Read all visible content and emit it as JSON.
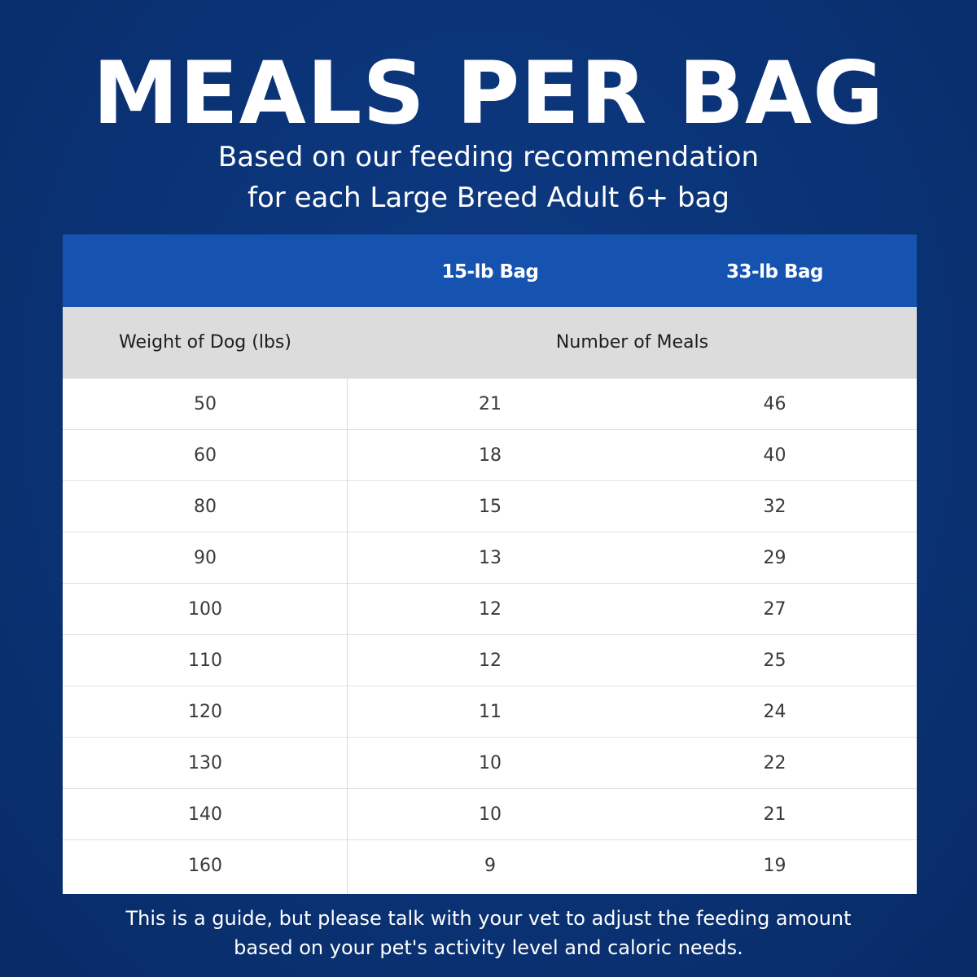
{
  "header": {
    "title": "MEALS PER BAG",
    "subtitle_line1": "Based on our feeding recommendation",
    "subtitle_line2": "for each Large Breed Adult 6+ bag"
  },
  "table": {
    "bag_headers": [
      "15-lb Bag",
      "33-lb Bag"
    ],
    "weight_header": "Weight of Dog (lbs)",
    "meals_header": "Number of Meals",
    "rows": [
      {
        "weight": "50",
        "bag15": "21",
        "bag33": "46"
      },
      {
        "weight": "60",
        "bag15": "18",
        "bag33": "40"
      },
      {
        "weight": "80",
        "bag15": "15",
        "bag33": "32"
      },
      {
        "weight": "90",
        "bag15": "13",
        "bag33": "29"
      },
      {
        "weight": "100",
        "bag15": "12",
        "bag33": "27"
      },
      {
        "weight": "110",
        "bag15": "12",
        "bag33": "25"
      },
      {
        "weight": "120",
        "bag15": "11",
        "bag33": "24"
      },
      {
        "weight": "130",
        "bag15": "10",
        "bag33": "22"
      },
      {
        "weight": "140",
        "bag15": "10",
        "bag33": "21"
      },
      {
        "weight": "160",
        "bag15": "9",
        "bag33": "19"
      }
    ]
  },
  "footer": {
    "line1": "This is a guide, but please talk with your vet to adjust the feeding amount",
    "line2": "based on your pet's activity level and caloric needs."
  },
  "colors": {
    "background": "#0b3479",
    "header_blue": "#1653b0",
    "header_gray": "#dcdcdc"
  }
}
